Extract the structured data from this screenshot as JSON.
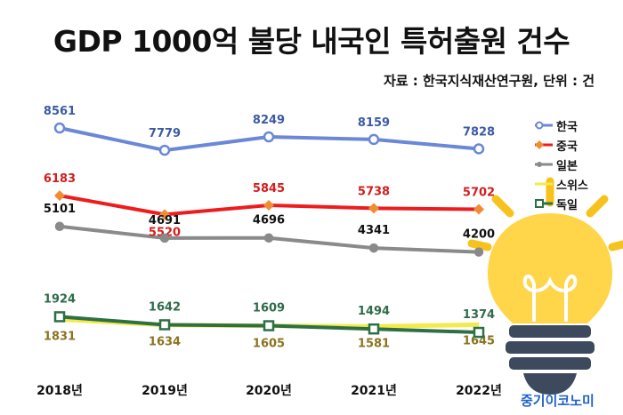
{
  "header": {
    "title": "GDP 1000억 불당 내국인 특허출원 건수",
    "source": "자료 : 한국지식재산연구원, 단위 : 건",
    "brand": "중기이코노미"
  },
  "colors": {
    "한국": "#6b88d6",
    "중국": "#ee1c1c",
    "일본": "#8a8a8a",
    "스위스": "#f4ea4a",
    "독일": "#2e7046"
  },
  "chart_data": {
    "type": "line",
    "title": "GDP 1000억 불당 내국인 특허출원 건수",
    "subtitle": "자료 : 한국지식재산연구원, 단위 : 건",
    "x": [
      "2018년",
      "2019년",
      "2020년",
      "2021년",
      "2022년"
    ],
    "series": [
      {
        "name": "한국",
        "values": [
          8561,
          7779,
          8249,
          8159,
          7828
        ],
        "color": "#6b88d6",
        "marker": "circle",
        "label_color": "#3b5ba5"
      },
      {
        "name": "중국",
        "values": [
          6183,
          5520,
          5845,
          5738,
          5702
        ],
        "color": "#ee1c1c",
        "marker": "diamond",
        "label_color": "#d21e1e"
      },
      {
        "name": "일본",
        "values": [
          5101,
          4691,
          4696,
          4341,
          4200
        ],
        "color": "#8a8a8a",
        "marker": "circle",
        "label_color": "#111111"
      },
      {
        "name": "스위스",
        "values": [
          1831,
          1634,
          1605,
          1581,
          1645
        ],
        "color": "#f4ea4a",
        "marker": "none",
        "label_color": "#8a7320"
      },
      {
        "name": "독일",
        "values": [
          1924,
          1642,
          1609,
          1494,
          1374
        ],
        "color": "#2e7046",
        "marker": "square",
        "label_color": "#2e6b4a"
      }
    ],
    "legend_position": "right",
    "grid": false
  }
}
